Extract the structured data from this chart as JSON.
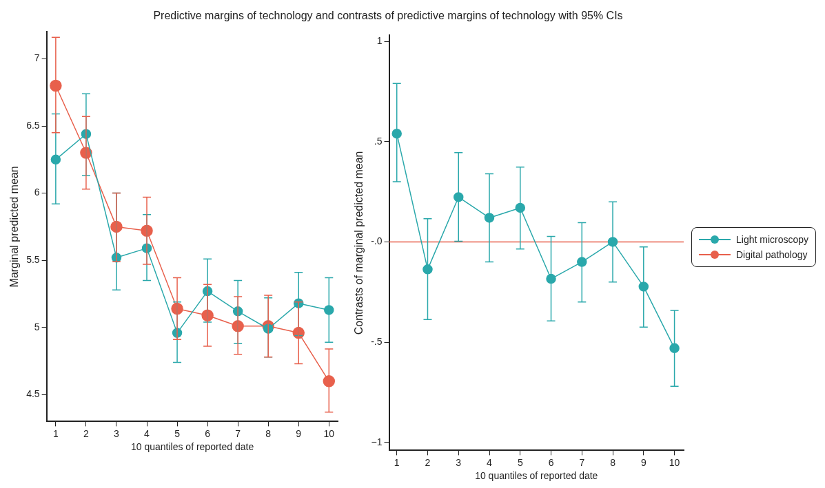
{
  "chart_data": [
    {
      "type": "line",
      "title": "Predictive margins of technology and contrasts of predictive margins of technology with 95% CIs",
      "xlabel": "10 quantiles of reported date",
      "ylabel": "Marginal predicted mean",
      "x": [
        1,
        2,
        3,
        4,
        5,
        6,
        7,
        8,
        9,
        10
      ],
      "xlim": [
        0.7,
        10.3
      ],
      "xticks": [
        1,
        2,
        3,
        4,
        5,
        6,
        7,
        8,
        9,
        10
      ],
      "ylim": [
        4.3,
        7.2
      ],
      "yticks": [
        4.5,
        5,
        5.5,
        6,
        6.5,
        7
      ],
      "marker": "circle",
      "legend": "right",
      "series": [
        {
          "name": "Light microscopy",
          "color": "#2aa8ab",
          "values": [
            6.25,
            6.44,
            5.52,
            5.59,
            4.96,
            5.27,
            5.12,
            4.99,
            5.18,
            5.13
          ],
          "errors": [
            [
              5.92,
              6.59
            ],
            [
              6.13,
              6.74
            ],
            [
              5.28,
              6.0
            ],
            [
              5.35,
              5.84
            ],
            [
              4.74,
              5.19
            ],
            [
              5.04,
              5.51
            ],
            [
              4.88,
              5.35
            ],
            [
              4.78,
              5.22
            ],
            [
              4.94,
              5.41
            ],
            [
              4.89,
              5.37
            ]
          ]
        },
        {
          "name": "Digital pathology",
          "color": "#e8604c",
          "values": [
            6.8,
            6.3,
            5.75,
            5.72,
            5.14,
            5.09,
            5.01,
            5.01,
            4.96,
            4.6
          ],
          "errors": [
            [
              6.45,
              7.16
            ],
            [
              6.03,
              6.57
            ],
            [
              5.49,
              6.0
            ],
            [
              5.47,
              5.97
            ],
            [
              4.91,
              5.37
            ],
            [
              4.86,
              5.32
            ],
            [
              4.8,
              5.23
            ],
            [
              4.78,
              5.24
            ],
            [
              4.73,
              5.19
            ],
            [
              4.37,
              4.84
            ]
          ]
        }
      ]
    },
    {
      "type": "line",
      "xlabel": "10 quantiles of reported date",
      "ylabel": "Contrasts of marginal predicted mean",
      "x": [
        1,
        2,
        3,
        4,
        5,
        6,
        7,
        8,
        9,
        10
      ],
      "xlim": [
        0.75,
        10.3
      ],
      "xticks": [
        1,
        2,
        3,
        4,
        5,
        6,
        7,
        8,
        9,
        10
      ],
      "ylim": [
        -1.04,
        1.03
      ],
      "yticks": [
        {
          "value": -1,
          "label": "−1"
        },
        {
          "value": -0.5,
          "label": "-.5"
        },
        {
          "value": 0,
          "label": "-.0"
        },
        {
          "value": 0.5,
          "label": ".5"
        },
        {
          "value": 1,
          "label": "1"
        }
      ],
      "marker": "circle",
      "ref_lines": [
        {
          "axis": "y",
          "value": 0,
          "color": "#e8604c"
        }
      ],
      "series": [
        {
          "color": "#2aa8ab",
          "values": [
            0.54,
            -0.137,
            0.223,
            0.12,
            0.17,
            -0.184,
            -0.1,
            0.0,
            -0.223,
            -0.53
          ],
          "errors": [
            [
              0.3,
              0.79
            ],
            [
              -0.387,
              0.116
            ],
            [
              0.003,
              0.445
            ],
            [
              -0.1,
              0.34
            ],
            [
              -0.035,
              0.373
            ],
            [
              -0.394,
              0.027
            ],
            [
              -0.3,
              0.096
            ],
            [
              -0.2,
              0.2
            ],
            [
              -0.425,
              -0.025
            ],
            [
              -0.72,
              -0.342
            ]
          ]
        }
      ]
    }
  ]
}
